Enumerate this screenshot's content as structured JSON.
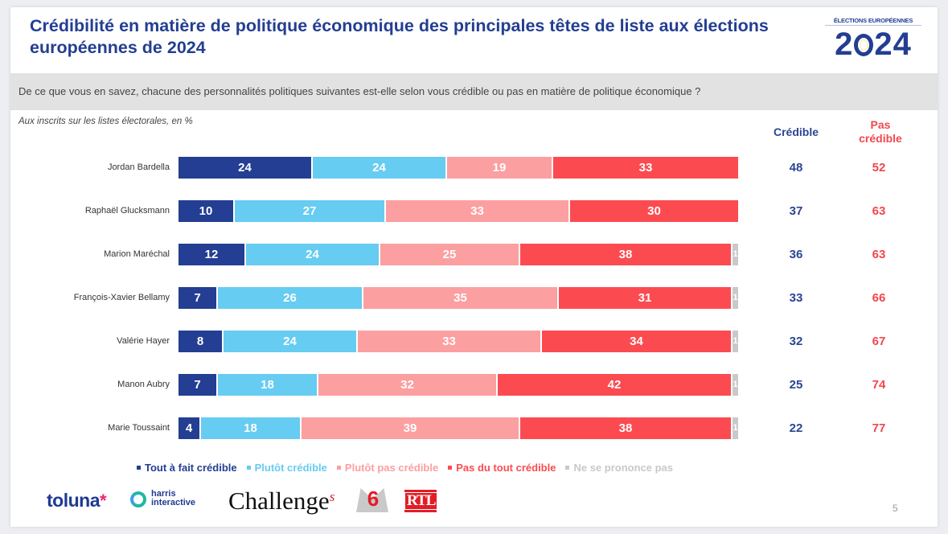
{
  "title": "Crédibilité en matière de politique économique des principales têtes de liste aux élections européennes de 2024",
  "logo": {
    "small": "ÉLECTIONS EUROPÉENNES",
    "big_pre": "2",
    "big_post": "24"
  },
  "question": "De ce que vous en savez, chacune des personnalités politiques suivantes est-elle selon vous crédible ou pas en matière de politique économique ?",
  "base": "Aux inscrits sur les listes électorales, en %",
  "columns": {
    "credible": "Crédible",
    "pas_credible_1": "Pas",
    "pas_credible_2": "crédible"
  },
  "page_number": "5",
  "footer_logos": {
    "toluna": "toluna",
    "toluna_star": "*",
    "harris_1": "harris",
    "harris_2": "interactive",
    "challenges": "Challenge",
    "challenges_s": "s",
    "m6": "6",
    "rtl": "RTL"
  },
  "chart_data": {
    "type": "bar",
    "orientation": "horizontal",
    "stacked": true,
    "title": "Crédibilité en matière de politique économique des principales têtes de liste aux élections européennes de 2024",
    "xlabel": "",
    "ylabel": "",
    "unit": "%",
    "xlim": [
      0,
      100
    ],
    "grid": false,
    "legend_position": "bottom",
    "categories": [
      "Jordan Bardella",
      "Raphaël Glucksmann",
      "Marion Maréchal",
      "François-Xavier Bellamy",
      "Valérie Hayer",
      "Manon Aubry",
      "Marie Toussaint"
    ],
    "series": [
      {
        "name": "Tout à fait crédible",
        "color": "#233e92",
        "values": [
          24,
          10,
          12,
          7,
          8,
          7,
          4
        ]
      },
      {
        "name": "Plutôt crédible",
        "color": "#66ccf2",
        "values": [
          24,
          27,
          24,
          26,
          24,
          18,
          18
        ]
      },
      {
        "name": "Plutôt pas crédible",
        "color": "#fb9fa1",
        "values": [
          19,
          33,
          25,
          35,
          33,
          32,
          39
        ]
      },
      {
        "name": "Pas du tout crédible",
        "color": "#fc4b50",
        "values": [
          33,
          30,
          38,
          31,
          34,
          42,
          38
        ]
      },
      {
        "name": "Ne se prononce pas",
        "color": "#c9c9c9",
        "values": [
          0,
          0,
          1,
          1,
          1,
          1,
          1
        ]
      }
    ],
    "totals": {
      "credible": [
        48,
        37,
        36,
        33,
        32,
        25,
        22
      ],
      "pas_credible": [
        52,
        63,
        63,
        66,
        67,
        74,
        77
      ]
    },
    "total_colors": {
      "credible": "#2b4593",
      "pas_credible": "#f2474d"
    }
  }
}
